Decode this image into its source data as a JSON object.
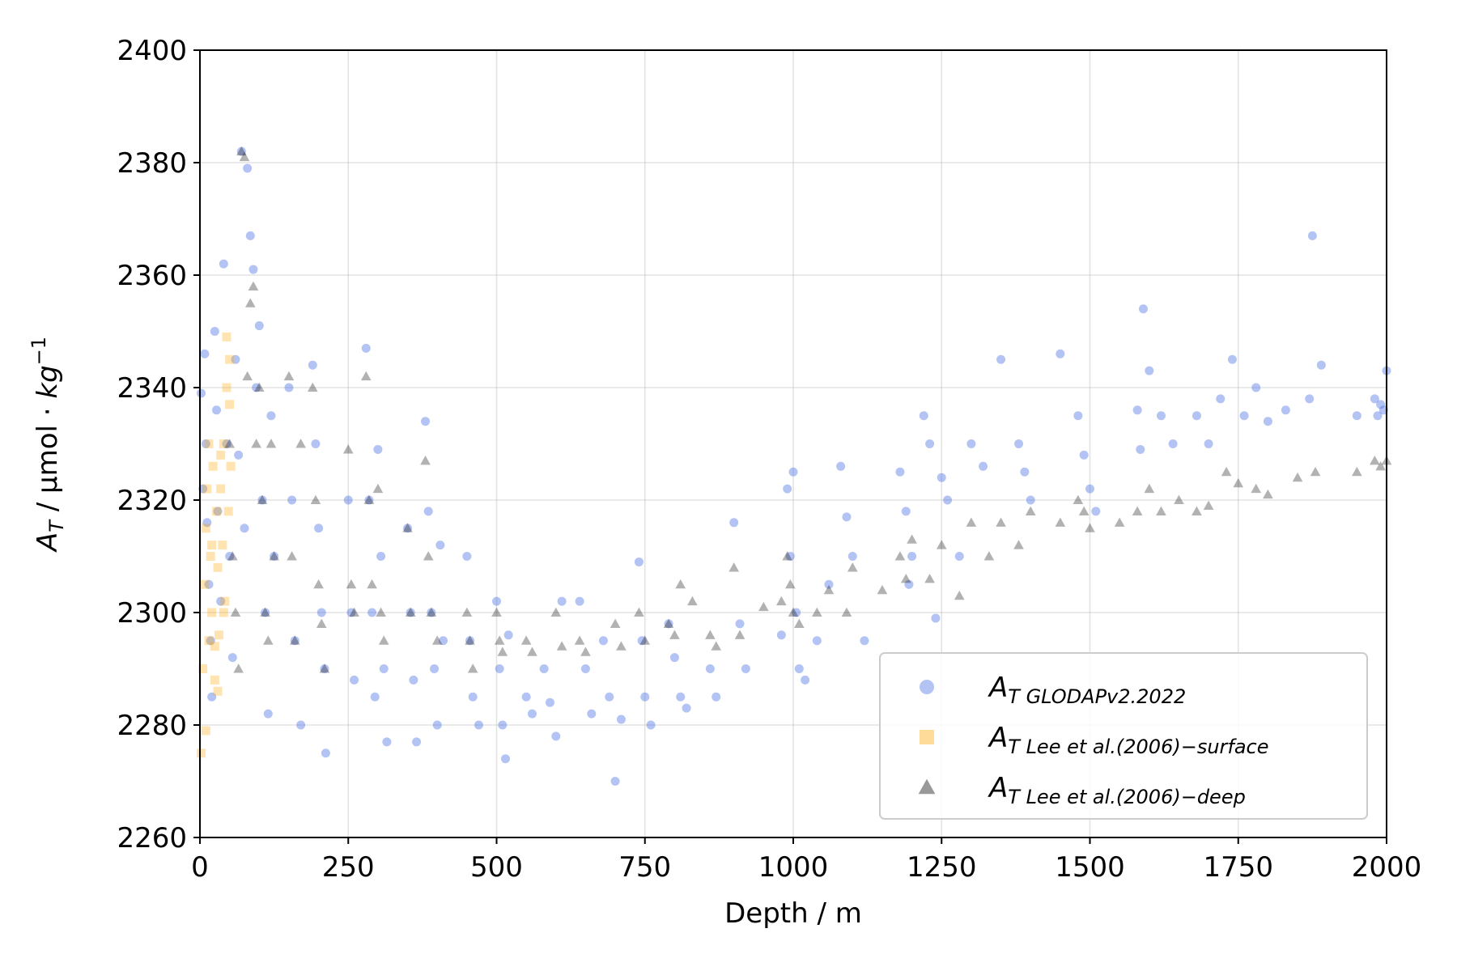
{
  "chart_data": {
    "type": "scatter",
    "xlabel": "Depth / m",
    "ylabel": {
      "main": "A",
      "sub": "T",
      "unit": " / μmol · ",
      "kg": "kg",
      "sup": "−1"
    },
    "xlim": [
      0,
      2000
    ],
    "ylim": [
      2260,
      2400
    ],
    "xticks": [
      0,
      250,
      500,
      750,
      1000,
      1250,
      1500,
      1750,
      2000
    ],
    "yticks": [
      2260,
      2280,
      2300,
      2320,
      2340,
      2360,
      2380,
      2400
    ],
    "grid": true,
    "legend_position": "lower right",
    "legend": [
      {
        "main": "A",
        "sub": "T",
        "sub_text": "GLODAPv2.2022",
        "marker": "circle",
        "color": "#4169e1"
      },
      {
        "main": "A",
        "sub": "T",
        "sub_text": "Lee  et  al.(2006)−surface",
        "marker": "square",
        "color": "#ffa500"
      },
      {
        "main": "A",
        "sub": "T",
        "sub_text": "Lee  et  al.(2006)−deep",
        "marker": "triangle",
        "color": "#000000"
      }
    ],
    "series": [
      {
        "name": "A_T GLODAPv2.2022",
        "marker": "circle",
        "color": "#4169e1",
        "points": [
          [
            2,
            2339
          ],
          [
            5,
            2322
          ],
          [
            8,
            2346
          ],
          [
            10,
            2330
          ],
          [
            12,
            2316
          ],
          [
            15,
            2305
          ],
          [
            18,
            2295
          ],
          [
            20,
            2285
          ],
          [
            25,
            2350
          ],
          [
            28,
            2336
          ],
          [
            30,
            2318
          ],
          [
            35,
            2302
          ],
          [
            40,
            2362
          ],
          [
            45,
            2330
          ],
          [
            50,
            2310
          ],
          [
            55,
            2292
          ],
          [
            60,
            2345
          ],
          [
            65,
            2328
          ],
          [
            70,
            2382
          ],
          [
            75,
            2315
          ],
          [
            80,
            2379
          ],
          [
            85,
            2367
          ],
          [
            90,
            2361
          ],
          [
            95,
            2340
          ],
          [
            100,
            2351
          ],
          [
            105,
            2320
          ],
          [
            110,
            2300
          ],
          [
            115,
            2282
          ],
          [
            120,
            2335
          ],
          [
            125,
            2310
          ],
          [
            150,
            2340
          ],
          [
            155,
            2320
          ],
          [
            160,
            2295
          ],
          [
            170,
            2280
          ],
          [
            190,
            2344
          ],
          [
            195,
            2330
          ],
          [
            200,
            2315
          ],
          [
            205,
            2300
          ],
          [
            210,
            2290
          ],
          [
            212,
            2275
          ],
          [
            250,
            2320
          ],
          [
            255,
            2300
          ],
          [
            260,
            2288
          ],
          [
            280,
            2347
          ],
          [
            285,
            2320
          ],
          [
            290,
            2300
          ],
          [
            295,
            2285
          ],
          [
            300,
            2329
          ],
          [
            305,
            2310
          ],
          [
            310,
            2290
          ],
          [
            315,
            2277
          ],
          [
            350,
            2315
          ],
          [
            355,
            2300
          ],
          [
            360,
            2288
          ],
          [
            365,
            2277
          ],
          [
            380,
            2334
          ],
          [
            385,
            2318
          ],
          [
            390,
            2300
          ],
          [
            395,
            2290
          ],
          [
            400,
            2280
          ],
          [
            405,
            2312
          ],
          [
            410,
            2295
          ],
          [
            450,
            2310
          ],
          [
            455,
            2295
          ],
          [
            460,
            2285
          ],
          [
            470,
            2280
          ],
          [
            500,
            2302
          ],
          [
            505,
            2290
          ],
          [
            510,
            2280
          ],
          [
            515,
            2274
          ],
          [
            520,
            2296
          ],
          [
            550,
            2285
          ],
          [
            560,
            2282
          ],
          [
            580,
            2290
          ],
          [
            590,
            2284
          ],
          [
            600,
            2278
          ],
          [
            610,
            2302
          ],
          [
            640,
            2302
          ],
          [
            650,
            2290
          ],
          [
            660,
            2282
          ],
          [
            680,
            2295
          ],
          [
            690,
            2285
          ],
          [
            700,
            2270
          ],
          [
            710,
            2281
          ],
          [
            740,
            2309
          ],
          [
            745,
            2295
          ],
          [
            750,
            2285
          ],
          [
            760,
            2280
          ],
          [
            790,
            2298
          ],
          [
            800,
            2292
          ],
          [
            810,
            2285
          ],
          [
            820,
            2283
          ],
          [
            860,
            2290
          ],
          [
            870,
            2285
          ],
          [
            900,
            2316
          ],
          [
            910,
            2298
          ],
          [
            920,
            2290
          ],
          [
            980,
            2296
          ],
          [
            990,
            2322
          ],
          [
            995,
            2310
          ],
          [
            1000,
            2325
          ],
          [
            1005,
            2300
          ],
          [
            1010,
            2290
          ],
          [
            1020,
            2288
          ],
          [
            1040,
            2295
          ],
          [
            1060,
            2305
          ],
          [
            1080,
            2326
          ],
          [
            1090,
            2317
          ],
          [
            1100,
            2310
          ],
          [
            1120,
            2295
          ],
          [
            1180,
            2325
          ],
          [
            1190,
            2318
          ],
          [
            1195,
            2305
          ],
          [
            1200,
            2310
          ],
          [
            1220,
            2335
          ],
          [
            1230,
            2330
          ],
          [
            1240,
            2299
          ],
          [
            1250,
            2324
          ],
          [
            1260,
            2320
          ],
          [
            1280,
            2310
          ],
          [
            1300,
            2330
          ],
          [
            1320,
            2326
          ],
          [
            1350,
            2345
          ],
          [
            1380,
            2330
          ],
          [
            1390,
            2325
          ],
          [
            1400,
            2320
          ],
          [
            1450,
            2346
          ],
          [
            1480,
            2335
          ],
          [
            1490,
            2328
          ],
          [
            1500,
            2322
          ],
          [
            1510,
            2318
          ],
          [
            1580,
            2336
          ],
          [
            1585,
            2329
          ],
          [
            1590,
            2354
          ],
          [
            1600,
            2343
          ],
          [
            1620,
            2335
          ],
          [
            1640,
            2330
          ],
          [
            1680,
            2335
          ],
          [
            1700,
            2330
          ],
          [
            1720,
            2338
          ],
          [
            1740,
            2345
          ],
          [
            1760,
            2335
          ],
          [
            1780,
            2340
          ],
          [
            1800,
            2334
          ],
          [
            1830,
            2336
          ],
          [
            1870,
            2338
          ],
          [
            1875,
            2367
          ],
          [
            1890,
            2344
          ],
          [
            1950,
            2335
          ],
          [
            1980,
            2338
          ],
          [
            1985,
            2335
          ],
          [
            1990,
            2337
          ],
          [
            1995,
            2336
          ],
          [
            2000,
            2343
          ]
        ]
      },
      {
        "name": "A_T Lee et al.(2006)-surface",
        "marker": "square",
        "color": "#ffa500",
        "points": [
          [
            2,
            2275
          ],
          [
            5,
            2290
          ],
          [
            8,
            2305
          ],
          [
            10,
            2315
          ],
          [
            12,
            2322
          ],
          [
            15,
            2295
          ],
          [
            18,
            2310
          ],
          [
            20,
            2300
          ],
          [
            22,
            2326
          ],
          [
            25,
            2288
          ],
          [
            28,
            2318
          ],
          [
            30,
            2308
          ],
          [
            32,
            2296
          ],
          [
            35,
            2322
          ],
          [
            38,
            2312
          ],
          [
            40,
            2330
          ],
          [
            42,
            2302
          ],
          [
            45,
            2340
          ],
          [
            48,
            2318
          ],
          [
            50,
            2345
          ],
          [
            52,
            2326
          ],
          [
            10,
            2279
          ],
          [
            15,
            2330
          ],
          [
            20,
            2312
          ],
          [
            25,
            2294
          ],
          [
            30,
            2286
          ],
          [
            35,
            2328
          ],
          [
            40,
            2300
          ],
          [
            45,
            2349
          ],
          [
            50,
            2337
          ]
        ]
      },
      {
        "name": "A_T Lee et al.(2006)-deep",
        "marker": "triangle",
        "color": "#000000",
        "points": [
          [
            50,
            2330
          ],
          [
            55,
            2310
          ],
          [
            60,
            2300
          ],
          [
            65,
            2290
          ],
          [
            70,
            2382
          ],
          [
            75,
            2381
          ],
          [
            80,
            2342
          ],
          [
            85,
            2355
          ],
          [
            90,
            2358
          ],
          [
            95,
            2330
          ],
          [
            100,
            2340
          ],
          [
            105,
            2320
          ],
          [
            110,
            2300
          ],
          [
            115,
            2295
          ],
          [
            120,
            2330
          ],
          [
            125,
            2310
          ],
          [
            150,
            2342
          ],
          [
            155,
            2310
          ],
          [
            160,
            2295
          ],
          [
            170,
            2330
          ],
          [
            190,
            2340
          ],
          [
            195,
            2320
          ],
          [
            200,
            2305
          ],
          [
            205,
            2298
          ],
          [
            210,
            2290
          ],
          [
            250,
            2329
          ],
          [
            255,
            2305
          ],
          [
            260,
            2300
          ],
          [
            280,
            2342
          ],
          [
            285,
            2320
          ],
          [
            290,
            2305
          ],
          [
            300,
            2322
          ],
          [
            305,
            2300
          ],
          [
            310,
            2295
          ],
          [
            350,
            2315
          ],
          [
            355,
            2300
          ],
          [
            380,
            2327
          ],
          [
            385,
            2310
          ],
          [
            390,
            2300
          ],
          [
            400,
            2295
          ],
          [
            450,
            2300
          ],
          [
            455,
            2295
          ],
          [
            460,
            2290
          ],
          [
            500,
            2300
          ],
          [
            505,
            2295
          ],
          [
            510,
            2293
          ],
          [
            550,
            2295
          ],
          [
            560,
            2293
          ],
          [
            600,
            2300
          ],
          [
            610,
            2294
          ],
          [
            640,
            2295
          ],
          [
            650,
            2293
          ],
          [
            700,
            2298
          ],
          [
            710,
            2294
          ],
          [
            740,
            2300
          ],
          [
            750,
            2295
          ],
          [
            790,
            2298
          ],
          [
            800,
            2296
          ],
          [
            810,
            2305
          ],
          [
            830,
            2302
          ],
          [
            860,
            2296
          ],
          [
            870,
            2294
          ],
          [
            900,
            2308
          ],
          [
            910,
            2296
          ],
          [
            950,
            2301
          ],
          [
            980,
            2302
          ],
          [
            990,
            2310
          ],
          [
            995,
            2305
          ],
          [
            1000,
            2300
          ],
          [
            1010,
            2298
          ],
          [
            1040,
            2300
          ],
          [
            1060,
            2304
          ],
          [
            1090,
            2300
          ],
          [
            1100,
            2308
          ],
          [
            1150,
            2304
          ],
          [
            1180,
            2310
          ],
          [
            1190,
            2306
          ],
          [
            1200,
            2313
          ],
          [
            1230,
            2306
          ],
          [
            1250,
            2312
          ],
          [
            1280,
            2303
          ],
          [
            1300,
            2316
          ],
          [
            1330,
            2310
          ],
          [
            1350,
            2316
          ],
          [
            1380,
            2312
          ],
          [
            1400,
            2318
          ],
          [
            1450,
            2316
          ],
          [
            1480,
            2320
          ],
          [
            1490,
            2318
          ],
          [
            1500,
            2315
          ],
          [
            1550,
            2316
          ],
          [
            1580,
            2318
          ],
          [
            1600,
            2322
          ],
          [
            1620,
            2318
          ],
          [
            1650,
            2320
          ],
          [
            1680,
            2318
          ],
          [
            1700,
            2319
          ],
          [
            1730,
            2325
          ],
          [
            1750,
            2323
          ],
          [
            1780,
            2322
          ],
          [
            1800,
            2321
          ],
          [
            1850,
            2324
          ],
          [
            1880,
            2325
          ],
          [
            1950,
            2325
          ],
          [
            1980,
            2327
          ],
          [
            1990,
            2326
          ],
          [
            2000,
            2327
          ]
        ]
      }
    ]
  }
}
